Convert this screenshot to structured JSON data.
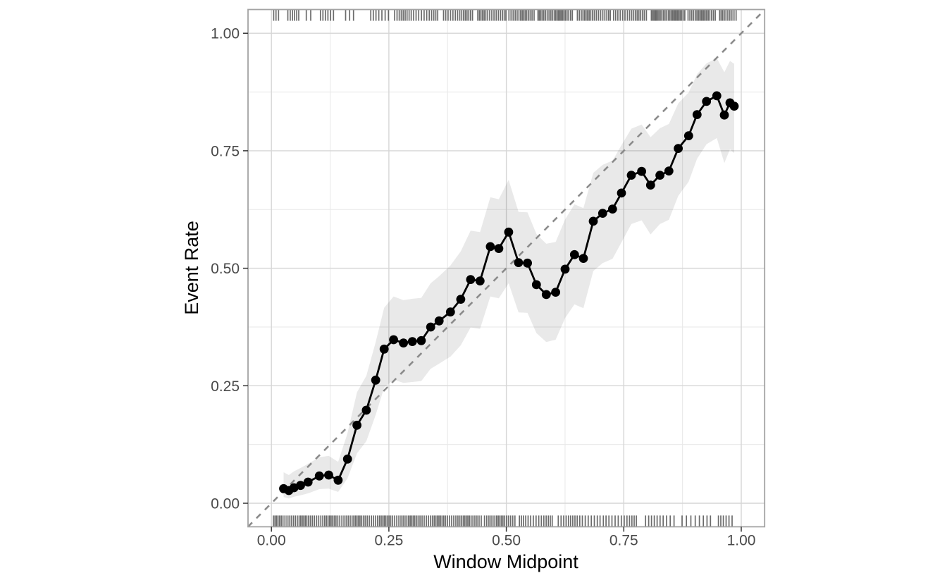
{
  "chart_data": {
    "type": "line",
    "title": "",
    "xlabel": "Window Midpoint",
    "ylabel": "Event Rate",
    "xlim": [
      -0.05,
      1.05
    ],
    "ylim": [
      -0.05,
      1.05
    ],
    "grid": "major+minor",
    "legend": "none",
    "x_ticks": {
      "values": [
        0,
        0.25,
        0.5,
        0.75,
        1.0
      ],
      "labels": [
        "0.00",
        "0.25",
        "0.50",
        "0.75",
        "1.00"
      ],
      "minor": [
        0.125,
        0.375,
        0.625,
        0.875
      ]
    },
    "y_ticks": {
      "values": [
        0,
        0.25,
        0.5,
        0.75,
        1.0
      ],
      "labels": [
        "0.00",
        "0.25",
        "0.50",
        "0.75",
        "1.00"
      ],
      "minor": [
        0.125,
        0.375,
        0.625,
        0.875
      ]
    },
    "reference_line": {
      "kind": "diagonal-identity",
      "style": "dashed",
      "from": [
        -0.05,
        -0.05
      ],
      "to": [
        1.05,
        1.05
      ]
    },
    "series": [
      {
        "name": "observed-event-rate",
        "type": "line+points",
        "x": [
          0.026,
          0.037,
          0.048,
          0.062,
          0.078,
          0.102,
          0.122,
          0.142,
          0.162,
          0.182,
          0.202,
          0.222,
          0.24,
          0.26,
          0.281,
          0.3,
          0.319,
          0.339,
          0.357,
          0.381,
          0.403,
          0.424,
          0.444,
          0.466,
          0.484,
          0.505,
          0.526,
          0.545,
          0.564,
          0.585,
          0.605,
          0.625,
          0.645,
          0.664,
          0.685,
          0.705,
          0.726,
          0.745,
          0.766,
          0.788,
          0.807,
          0.827,
          0.846,
          0.866,
          0.888,
          0.906,
          0.926,
          0.948,
          0.964,
          0.976,
          0.985
        ],
        "y": [
          0.031,
          0.027,
          0.033,
          0.038,
          0.045,
          0.058,
          0.06,
          0.049,
          0.094,
          0.166,
          0.198,
          0.262,
          0.328,
          0.348,
          0.341,
          0.344,
          0.346,
          0.375,
          0.388,
          0.407,
          0.434,
          0.476,
          0.473,
          0.546,
          0.542,
          0.577,
          0.512,
          0.511,
          0.465,
          0.444,
          0.449,
          0.498,
          0.529,
          0.521,
          0.6,
          0.617,
          0.626,
          0.66,
          0.698,
          0.706,
          0.677,
          0.698,
          0.707,
          0.755,
          0.782,
          0.827,
          0.855,
          0.867,
          0.826,
          0.852,
          0.845
        ]
      },
      {
        "name": "confidence-band",
        "type": "ribbon",
        "lower": [
          0.013,
          0.01,
          0.014,
          0.017,
          0.021,
          0.03,
          0.031,
          0.024,
          0.053,
          0.106,
          0.132,
          0.188,
          0.246,
          0.263,
          0.256,
          0.258,
          0.26,
          0.286,
          0.297,
          0.312,
          0.336,
          0.374,
          0.371,
          0.44,
          0.436,
          0.468,
          0.406,
          0.405,
          0.362,
          0.343,
          0.348,
          0.394,
          0.423,
          0.415,
          0.494,
          0.511,
          0.52,
          0.555,
          0.594,
          0.602,
          0.572,
          0.594,
          0.603,
          0.654,
          0.684,
          0.733,
          0.764,
          0.777,
          0.724,
          0.753,
          0.745
        ],
        "upper": [
          0.066,
          0.06,
          0.068,
          0.075,
          0.084,
          0.098,
          0.101,
          0.088,
          0.149,
          0.236,
          0.271,
          0.343,
          0.416,
          0.44,
          0.432,
          0.435,
          0.437,
          0.468,
          0.483,
          0.506,
          0.536,
          0.58,
          0.577,
          0.651,
          0.647,
          0.688,
          0.62,
          0.619,
          0.573,
          0.552,
          0.556,
          0.604,
          0.636,
          0.628,
          0.703,
          0.72,
          0.729,
          0.762,
          0.797,
          0.806,
          0.779,
          0.798,
          0.807,
          0.851,
          0.874,
          0.913,
          0.936,
          0.947,
          0.917,
          0.941,
          0.935
        ]
      }
    ],
    "rug": {
      "top_segments": [
        {
          "from": 0.004,
          "to": 0.02,
          "n": 3
        },
        {
          "from": 0.03,
          "to": 0.062,
          "n": 6
        },
        {
          "from": 0.073,
          "to": 0.09,
          "n": 2
        },
        {
          "from": 0.1,
          "to": 0.138,
          "n": 6
        },
        {
          "from": 0.154,
          "to": 0.176,
          "n": 3
        },
        {
          "from": 0.21,
          "to": 0.252,
          "n": 7
        },
        {
          "from": 0.258,
          "to": 0.356,
          "n": 20
        },
        {
          "from": 0.366,
          "to": 0.432,
          "n": 15
        },
        {
          "from": 0.436,
          "to": 0.5,
          "n": 16
        },
        {
          "from": 0.504,
          "to": 0.562,
          "n": 15
        },
        {
          "from": 0.566,
          "to": 0.642,
          "n": 23
        },
        {
          "from": 0.648,
          "to": 0.722,
          "n": 19
        },
        {
          "from": 0.728,
          "to": 0.802,
          "n": 17
        },
        {
          "from": 0.806,
          "to": 0.882,
          "n": 25
        },
        {
          "from": 0.886,
          "to": 0.946,
          "n": 18
        },
        {
          "from": 0.952,
          "to": 0.99,
          "n": 10
        }
      ],
      "bottom_segments": [
        {
          "from": 0.001,
          "to": 0.448,
          "n": 115
        },
        {
          "from": 0.452,
          "to": 0.52,
          "n": 17
        },
        {
          "from": 0.526,
          "to": 0.6,
          "n": 15
        },
        {
          "from": 0.606,
          "to": 0.7,
          "n": 17
        },
        {
          "from": 0.706,
          "to": 0.78,
          "n": 13
        },
        {
          "from": 0.79,
          "to": 0.862,
          "n": 10
        },
        {
          "from": 0.872,
          "to": 0.936,
          "n": 8
        },
        {
          "from": 0.948,
          "to": 0.986,
          "n": 6
        }
      ]
    },
    "colors": {
      "point": "#000000",
      "line": "#000000",
      "band": "rgba(0,0,0,0.085)",
      "diagonal": "#8c8c8c",
      "rug": "rgba(70,70,70,0.80)",
      "grid_major": "#d6d6d6",
      "grid_minor": "#e9e9e9",
      "panel_border": "#a3a3a3",
      "tick_text": "#4a4a4a",
      "tick_mark": "#333333",
      "background": "#ffffff"
    }
  }
}
